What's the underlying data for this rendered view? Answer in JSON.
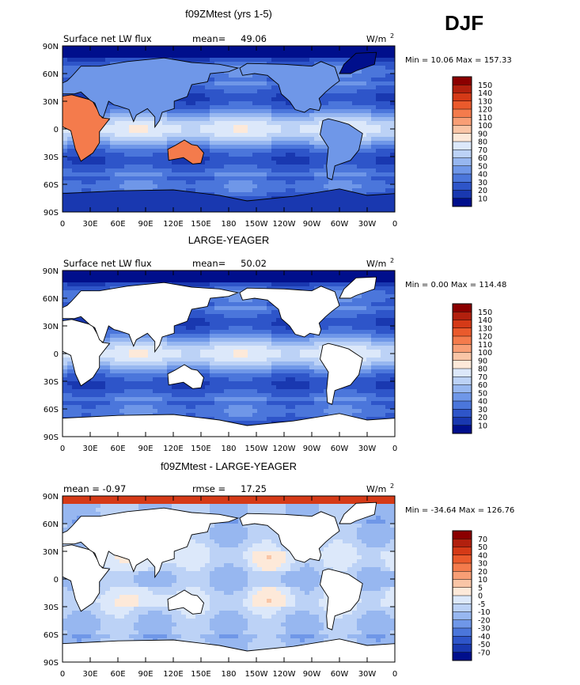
{
  "season": "DJF",
  "axes": {
    "y_ticks": [
      "90N",
      "60N",
      "30N",
      "0",
      "30S",
      "60S",
      "90S"
    ],
    "x_ticks": [
      "0",
      "30E",
      "60E",
      "90E",
      "120E",
      "150E",
      "180",
      "150W",
      "120W",
      "90W",
      "60W",
      "30W",
      "0"
    ]
  },
  "chart_data": [
    {
      "type": "heatmap",
      "title": "f09ZMtest (yrs 1-5)",
      "left_label": "Surface net LW flux",
      "stat_label": "mean=",
      "stat_value": "49.06",
      "units": "W/m",
      "units_exp": "2",
      "min_max_text": "Min =   10.06 Max = 157.33",
      "colorbar": {
        "levels": [
          "150",
          "140",
          "130",
          "120",
          "110",
          "100",
          "90",
          "80",
          "70",
          "60",
          "50",
          "40",
          "30",
          "20",
          "10"
        ],
        "colors": [
          "#8b0000",
          "#b2200e",
          "#d53a17",
          "#ea5a2c",
          "#f47b4c",
          "#f89e75",
          "#f9c5a6",
          "#fde9d9",
          "#dce8fa",
          "#bcd2f6",
          "#97b7f0",
          "#6f97e8",
          "#4b76db",
          "#2e55c9",
          "#1938b0",
          "#000f8c"
        ]
      },
      "map_style": "full"
    },
    {
      "type": "heatmap",
      "title": "LARGE-YEAGER",
      "left_label": "Surface net LW flux",
      "stat_label": "mean=",
      "stat_value": "50.02",
      "units": "W/m",
      "units_exp": "2",
      "min_max_text": "Min =    0.00 Max = 114.48",
      "colorbar": {
        "levels": [
          "150",
          "140",
          "130",
          "120",
          "110",
          "100",
          "90",
          "80",
          "70",
          "60",
          "50",
          "40",
          "30",
          "20",
          "10"
        ],
        "colors": [
          "#8b0000",
          "#b2200e",
          "#d53a17",
          "#ea5a2c",
          "#f47b4c",
          "#f89e75",
          "#f9c5a6",
          "#fde9d9",
          "#dce8fa",
          "#bcd2f6",
          "#97b7f0",
          "#6f97e8",
          "#4b76db",
          "#2e55c9",
          "#1938b0",
          "#000f8c"
        ]
      },
      "map_style": "ocean"
    },
    {
      "type": "heatmap",
      "title": "f09ZMtest - LARGE-YEAGER",
      "left_label": "mean =   -0.97",
      "stat_label": "rmse =",
      "stat_value": "17.25",
      "units": "W/m",
      "units_exp": "2",
      "min_max_text": "Min = -34.64 Max = 126.76",
      "colorbar": {
        "levels": [
          "70",
          "50",
          "40",
          "30",
          "20",
          "10",
          "5",
          "0",
          "-5",
          "-10",
          "-20",
          "-30",
          "-40",
          "-50",
          "-70"
        ],
        "colors": [
          "#8b0000",
          "#b2200e",
          "#d53a17",
          "#ea5a2c",
          "#f47b4c",
          "#f89e75",
          "#f9c5a6",
          "#fde9d9",
          "#dce8fa",
          "#bcd2f6",
          "#97b7f0",
          "#6f97e8",
          "#4b76db",
          "#2e55c9",
          "#1938b0",
          "#000f8c"
        ]
      },
      "map_style": "diff"
    }
  ]
}
